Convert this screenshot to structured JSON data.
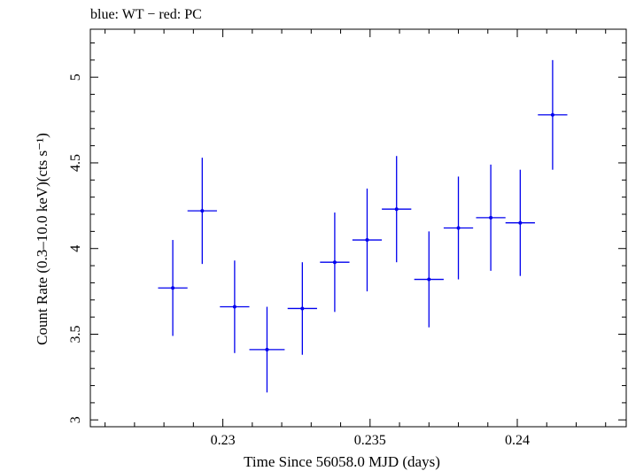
{
  "chart_data": {
    "type": "scatter",
    "title": "blue: WT − red: PC",
    "xlabel": "Time Since 56058.0 MJD (days)",
    "ylabel": "Count Rate (0.3–10.0 keV)(cts s⁻¹)",
    "xlim": [
      0.2255,
      0.2437
    ],
    "ylim": [
      2.96,
      5.28
    ],
    "x_ticks": [
      0.23,
      0.235,
      0.24
    ],
    "x_tick_labels": [
      "0.23",
      "0.235",
      "0.24"
    ],
    "y_ticks": [
      3,
      3.5,
      4,
      4.5,
      5
    ],
    "y_tick_labels": [
      "3",
      "3.5",
      "4",
      "4.5",
      "5"
    ],
    "grid": false,
    "series": [
      {
        "name": "WT",
        "color": "#0000ee",
        "points": [
          {
            "x": 0.2283,
            "xerr": 0.0005,
            "y": 3.77,
            "yerr": 0.28
          },
          {
            "x": 0.2293,
            "xerr": 0.0005,
            "y": 4.22,
            "yerr": 0.31
          },
          {
            "x": 0.2304,
            "xerr": 0.0005,
            "y": 3.66,
            "yerr": 0.27
          },
          {
            "x": 0.2315,
            "xerr": 0.0006,
            "y": 3.41,
            "yerr": 0.25
          },
          {
            "x": 0.2327,
            "xerr": 0.0005,
            "y": 3.65,
            "yerr": 0.27
          },
          {
            "x": 0.2338,
            "xerr": 0.0005,
            "y": 3.92,
            "yerr": 0.29
          },
          {
            "x": 0.2349,
            "xerr": 0.0005,
            "y": 4.05,
            "yerr": 0.3
          },
          {
            "x": 0.2359,
            "xerr": 0.0005,
            "y": 4.23,
            "yerr": 0.31
          },
          {
            "x": 0.237,
            "xerr": 0.0005,
            "y": 3.82,
            "yerr": 0.28
          },
          {
            "x": 0.238,
            "xerr": 0.0005,
            "y": 4.12,
            "yerr": 0.3
          },
          {
            "x": 0.2391,
            "xerr": 0.0005,
            "y": 4.18,
            "yerr": 0.31
          },
          {
            "x": 0.2401,
            "xerr": 0.0005,
            "y": 4.15,
            "yerr": 0.31
          },
          {
            "x": 0.2412,
            "xerr": 0.0005,
            "y": 4.78,
            "yerr": 0.32
          }
        ]
      }
    ]
  }
}
